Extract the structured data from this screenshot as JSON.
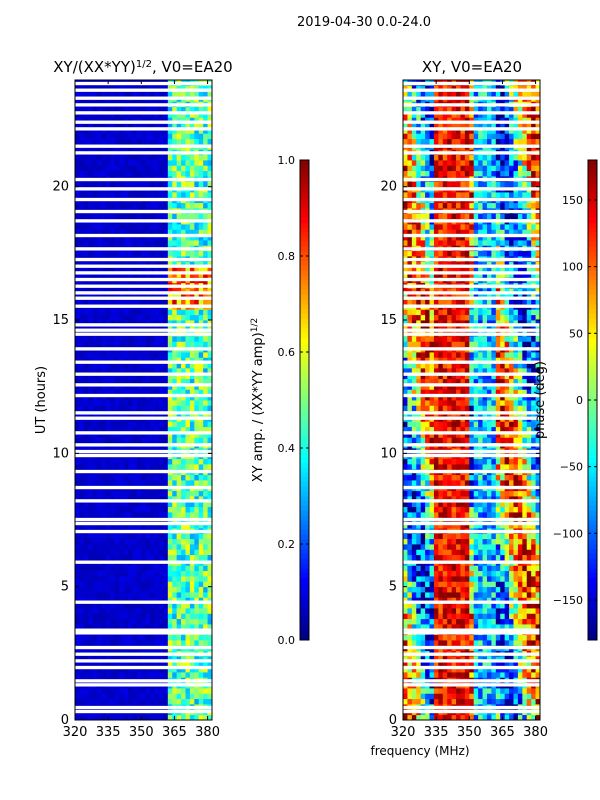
{
  "suptitle": "2019-04-30 0.0-24.0",
  "chart_data": [
    {
      "type": "heatmap",
      "title_main": "XY/(XX*YY)",
      "title_exp": "1/2",
      "title_tail": ", V0=EA20",
      "ylabel": "UT (hours)",
      "xlabel": "",
      "xlim": [
        320,
        382
      ],
      "ylim": [
        0,
        24
      ],
      "xticks": [
        320,
        335,
        350,
        365,
        380
      ],
      "yticks": [
        0,
        5,
        10,
        15,
        20
      ],
      "mode": "amp",
      "colorbar": {
        "label_main": "XY amp. / (XX*YY amp)",
        "label_exp": "1/2",
        "range": [
          0.0,
          1.0
        ],
        "ticks": [
          "0.0",
          "0.2",
          "0.4",
          "0.6",
          "0.8",
          "1.0"
        ],
        "colormap": "jet"
      }
    },
    {
      "type": "heatmap",
      "title_main": "XY, V0=EA20",
      "title_exp": "",
      "title_tail": "",
      "ylabel": "",
      "xlabel": "frequency (MHz)",
      "xlim": [
        320,
        382
      ],
      "ylim": [
        0,
        24
      ],
      "xticks": [
        320,
        335,
        350,
        365,
        380
      ],
      "yticks": [
        0,
        5,
        10,
        15,
        20
      ],
      "mode": "phase",
      "colorbar": {
        "label_main": "phase (deg)",
        "label_exp": "",
        "range": [
          -180,
          180
        ],
        "ticks": [
          "-150",
          "-100",
          "-50",
          "0",
          "50",
          "100",
          "150"
        ],
        "colormap": "jet"
      }
    }
  ],
  "flagged_ut_hours": [
    0.3,
    0.45,
    1.3,
    1.45,
    1.95,
    2.2,
    2.45,
    2.7,
    3.25,
    3.35,
    4.4,
    5.9,
    7.05,
    7.35,
    7.5,
    8.2,
    8.7,
    9.3,
    9.9,
    10.05,
    10.3,
    10.75,
    11.3,
    11.5,
    12.15,
    12.55,
    12.95,
    13.4,
    13.9,
    14.45,
    14.6,
    14.8,
    15.5,
    15.8,
    16.0,
    16.25,
    16.5,
    16.75,
    17.0,
    17.25,
    17.65,
    18.15,
    18.7,
    19.05,
    19.5,
    19.9,
    20.25,
    21.25,
    21.5,
    22.15,
    22.4,
    22.75,
    23.05,
    23.3,
    23.6,
    23.85
  ]
}
